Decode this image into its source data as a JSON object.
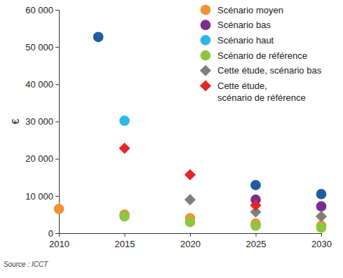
{
  "chart_data": {
    "type": "scatter",
    "y_label": "€",
    "source": "Source : ICCT",
    "xlim": [
      2010,
      2030
    ],
    "xticks": [
      2010,
      2015,
      2020,
      2025,
      2030
    ],
    "ylim": [
      0,
      60000
    ],
    "yticks": [
      0,
      {
        "value": 10000,
        "label": "10 000"
      },
      {
        "value": 20000,
        "label": "20 000"
      },
      {
        "value": 30000,
        "label": "30 000"
      },
      {
        "value": 40000,
        "label": "40 000"
      },
      {
        "value": 50000,
        "label": "50 000"
      },
      {
        "value": 60000,
        "label": "60 000"
      }
    ],
    "grid": false,
    "legend": "upper right",
    "series": [
      {
        "name": null,
        "color": "#1f5d9e",
        "marker": "circle",
        "x": [
          2013,
          2025,
          2030
        ],
        "values": [
          52700,
          12900,
          10500
        ]
      },
      {
        "name": "Scénario moyen",
        "color": "#f39233",
        "marker": "circle",
        "x": [
          2010,
          2015,
          2020,
          2025,
          2030
        ],
        "values": [
          6500,
          5000,
          4000,
          2600,
          2000
        ]
      },
      {
        "name": "Scénario bas",
        "color": "#7b2d8e",
        "marker": "circle",
        "x": [
          2025,
          2030
        ],
        "values": [
          9000,
          7200
        ]
      },
      {
        "name": "Scénario haut",
        "color": "#2eb5ea",
        "marker": "circle",
        "x": [
          2015
        ],
        "values": [
          30200
        ]
      },
      {
        "name": "Scénario de référence",
        "color": "#8dc63f",
        "marker": "circle",
        "x": [
          2015,
          2020,
          2025,
          2030
        ],
        "values": [
          4500,
          3000,
          2000,
          1500
        ]
      },
      {
        "name": "Cette étude, scénario bas",
        "color": "#7f7f7f",
        "marker": "diamond",
        "x": [
          2020,
          2025,
          2030
        ],
        "values": [
          9000,
          5700,
          4500
        ]
      },
      {
        "name": "Cette étude,\nscénario de référence",
        "color": "#e3262a",
        "marker": "diamond",
        "x": [
          2015,
          2020,
          2025
        ],
        "values": [
          22800,
          15700,
          7500
        ]
      }
    ]
  }
}
